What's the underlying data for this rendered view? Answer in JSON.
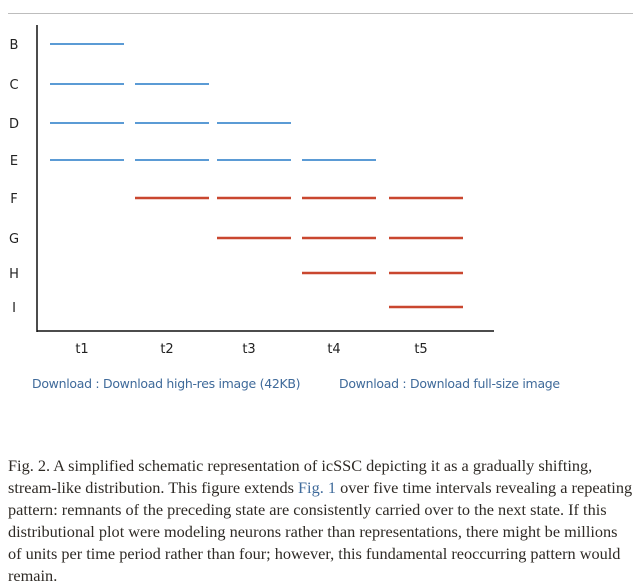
{
  "chart_data": {
    "type": "schematic-segments",
    "rows": [
      "B",
      "C",
      "D",
      "E",
      "F",
      "G",
      "H",
      "I"
    ],
    "columns": [
      "t1",
      "t2",
      "t3",
      "t4",
      "t5"
    ],
    "colors": {
      "blue": "#5b9bd5",
      "red": "#c9472f",
      "axis": "#111111"
    },
    "segments": [
      {
        "row": "B",
        "col": "t1",
        "color": "blue"
      },
      {
        "row": "C",
        "col": "t1",
        "color": "blue"
      },
      {
        "row": "C",
        "col": "t2",
        "color": "blue"
      },
      {
        "row": "D",
        "col": "t1",
        "color": "blue"
      },
      {
        "row": "D",
        "col": "t2",
        "color": "blue"
      },
      {
        "row": "D",
        "col": "t3",
        "color": "blue"
      },
      {
        "row": "E",
        "col": "t1",
        "color": "blue"
      },
      {
        "row": "E",
        "col": "t2",
        "color": "blue"
      },
      {
        "row": "E",
        "col": "t3",
        "color": "blue"
      },
      {
        "row": "E",
        "col": "t4",
        "color": "blue"
      },
      {
        "row": "F",
        "col": "t2",
        "color": "red"
      },
      {
        "row": "F",
        "col": "t3",
        "color": "red"
      },
      {
        "row": "F",
        "col": "t4",
        "color": "red"
      },
      {
        "row": "F",
        "col": "t5",
        "color": "red"
      },
      {
        "row": "G",
        "col": "t3",
        "color": "red"
      },
      {
        "row": "G",
        "col": "t4",
        "color": "red"
      },
      {
        "row": "G",
        "col": "t5",
        "color": "red"
      },
      {
        "row": "H",
        "col": "t4",
        "color": "red"
      },
      {
        "row": "H",
        "col": "t5",
        "color": "red"
      },
      {
        "row": "I",
        "col": "t5",
        "color": "red"
      }
    ]
  },
  "downloads": {
    "hires": "Download : Download high-res image (42KB)",
    "fullsize": "Download : Download full-size image"
  },
  "caption": {
    "before": "Fig. 2. A simplified schematic representation of icSSC depicting it as a gradually shifting, stream-like distribution. This figure extends ",
    "link": "Fig. 1",
    "after": " over five time intervals revealing a repeating pattern: remnants of the preceding state are consistently carried over to the next state. If this distributional plot were modeling neurons rather than representations, there might be millions of units per time period rather than four; however, this fundamental reoccurring pattern would remain."
  }
}
